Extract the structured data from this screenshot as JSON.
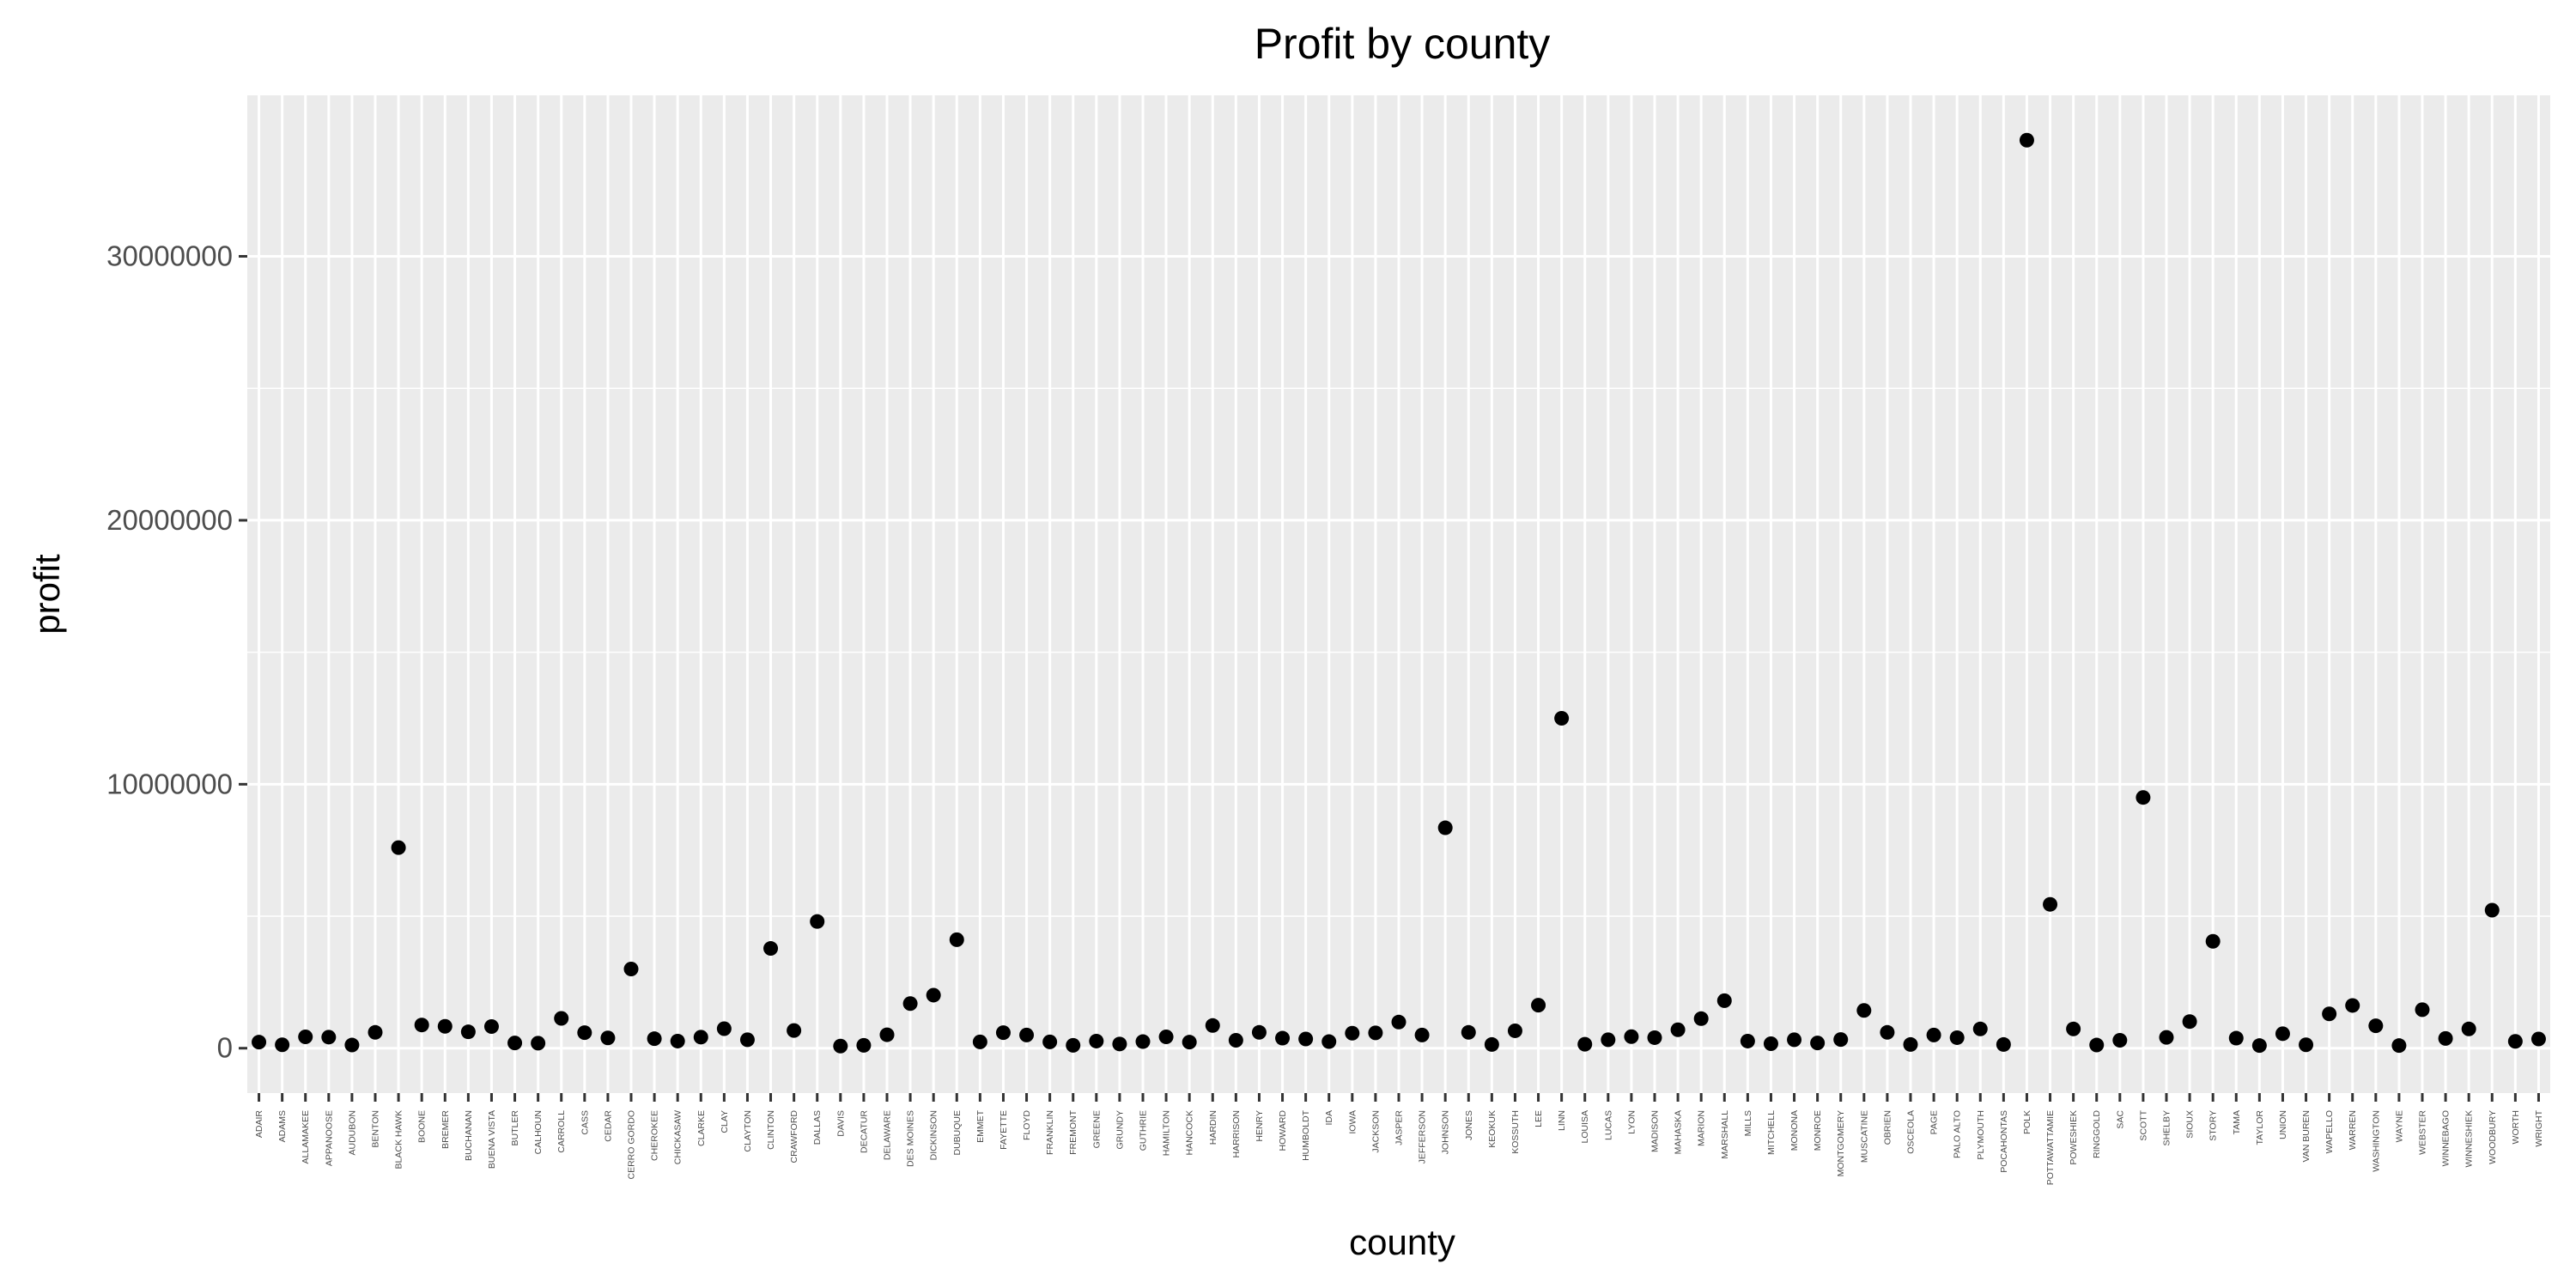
{
  "chart_data": {
    "type": "scatter",
    "title": "Profit by county",
    "xlabel": "county",
    "ylabel": "profit",
    "ylim": [
      -1700000,
      36100000
    ],
    "yticks": [
      0,
      10000000,
      20000000,
      30000000
    ],
    "ytick_labels": [
      "0",
      "10000000",
      "20000000",
      "30000000"
    ],
    "grid": true,
    "colors": {
      "panel": "#ebebeb",
      "grid": "#ffffff",
      "point": "#000000",
      "tick": "#333333"
    },
    "categories": [
      "ADAIR",
      "ADAMS",
      "ALLAMAKEE",
      "APPANOOSE",
      "AUDUBON",
      "BENTON",
      "BLACK HAWK",
      "BOONE",
      "BREMER",
      "BUCHANAN",
      "BUENA VISTA",
      "BUTLER",
      "CALHOUN",
      "CARROLL",
      "CASS",
      "CEDAR",
      "CERRO GORDO",
      "CHEROKEE",
      "CHICKASAW",
      "CLARKE",
      "CLAY",
      "CLAYTON",
      "CLINTON",
      "CRAWFORD",
      "DALLAS",
      "DAVIS",
      "DECATUR",
      "DELAWARE",
      "DES MOINES",
      "DICKINSON",
      "DUBUQUE",
      "EMMET",
      "FAYETTE",
      "FLOYD",
      "FRANKLIN",
      "FREMONT",
      "GREENE",
      "GRUNDY",
      "GUTHRIE",
      "HAMILTON",
      "HANCOCK",
      "HARDIN",
      "HARRISON",
      "HENRY",
      "HOWARD",
      "HUMBOLDT",
      "IDA",
      "IOWA",
      "JACKSON",
      "JASPER",
      "JEFFERSON",
      "JOHNSON",
      "JONES",
      "KEOKUK",
      "KOSSUTH",
      "LEE",
      "LINN",
      "LOUISA",
      "LUCAS",
      "LYON",
      "MADISON",
      "MAHASKA",
      "MARION",
      "MARSHALL",
      "MILLS",
      "MITCHELL",
      "MONONA",
      "MONROE",
      "MONTGOMERY",
      "MUSCATINE",
      "OBRIEN",
      "OSCEOLA",
      "PAGE",
      "PALO ALTO",
      "PLYMOUTH",
      "POCAHONTAS",
      "POLK",
      "POTTAWATTAMIE",
      "POWESHIEK",
      "RINGGOLD",
      "SAC",
      "SCOTT",
      "SHELBY",
      "SIOUX",
      "STORY",
      "TAMA",
      "TAYLOR",
      "UNION",
      "VAN BUREN",
      "WAPELLO",
      "WARREN",
      "WASHINGTON",
      "WAYNE",
      "WEBSTER",
      "WINNEBAGO",
      "WINNESHIEK",
      "WOODBURY",
      "WORTH",
      "WRIGHT"
    ],
    "values": [
      230000,
      130000,
      430000,
      420000,
      120000,
      600000,
      7600000,
      880000,
      830000,
      620000,
      820000,
      200000,
      190000,
      1130000,
      590000,
      390000,
      3000000,
      360000,
      270000,
      420000,
      740000,
      320000,
      3780000,
      670000,
      4800000,
      80000,
      110000,
      510000,
      1690000,
      2010000,
      4110000,
      240000,
      590000,
      500000,
      240000,
      110000,
      270000,
      160000,
      250000,
      430000,
      230000,
      860000,
      300000,
      600000,
      380000,
      350000,
      250000,
      570000,
      580000,
      990000,
      500000,
      8350000,
      600000,
      140000,
      660000,
      1630000,
      12500000,
      150000,
      320000,
      440000,
      400000,
      700000,
      1120000,
      1800000,
      270000,
      170000,
      320000,
      200000,
      330000,
      1430000,
      600000,
      140000,
      500000,
      400000,
      730000,
      140000,
      34400000,
      5450000,
      730000,
      120000,
      300000,
      9500000,
      410000,
      1010000,
      4050000,
      380000,
      100000,
      550000,
      130000,
      1300000,
      1620000,
      850000,
      100000,
      1460000,
      370000,
      730000,
      5230000,
      260000,
      350000
    ]
  }
}
